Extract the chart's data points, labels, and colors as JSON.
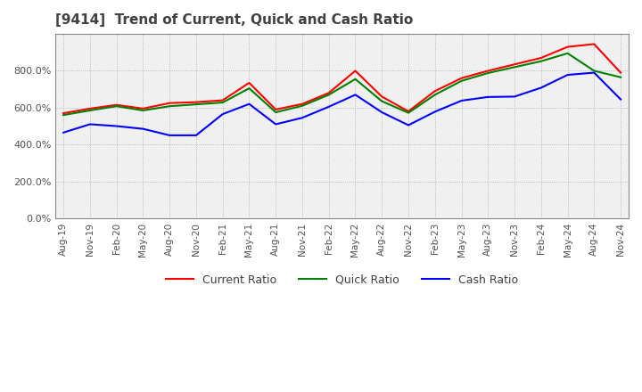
{
  "title": "[9414]  Trend of Current, Quick and Cash Ratio",
  "x_labels": [
    "Aug-19",
    "Nov-19",
    "Feb-20",
    "May-20",
    "Aug-20",
    "Nov-20",
    "Feb-21",
    "May-21",
    "Aug-21",
    "Nov-21",
    "Feb-22",
    "May-22",
    "Aug-22",
    "Nov-22",
    "Feb-23",
    "May-23",
    "Aug-23",
    "Nov-23",
    "Feb-24",
    "May-24",
    "Aug-24",
    "Nov-24"
  ],
  "current_ratio": [
    570,
    595,
    615,
    595,
    625,
    630,
    640,
    735,
    590,
    620,
    680,
    800,
    660,
    580,
    690,
    760,
    800,
    835,
    870,
    930,
    945,
    790
  ],
  "quick_ratio": [
    560,
    585,
    608,
    585,
    608,
    618,
    628,
    705,
    575,
    610,
    670,
    755,
    635,
    572,
    670,
    745,
    788,
    820,
    852,
    895,
    800,
    765
  ],
  "cash_ratio": [
    465,
    510,
    500,
    485,
    450,
    450,
    565,
    620,
    510,
    545,
    605,
    670,
    575,
    505,
    578,
    638,
    658,
    660,
    708,
    778,
    790,
    645
  ],
  "current_color": "#FF0000",
  "quick_color": "#008000",
  "cash_color": "#0000FF",
  "background_color": "#FFFFFF",
  "plot_bg_color": "#F0F0F0",
  "grid_color": "#AAAAAA",
  "ylim": [
    0,
    1000
  ],
  "yticks": [
    0,
    200,
    400,
    600,
    800
  ],
  "title_color": "#404040",
  "legend_labels": [
    "Current Ratio",
    "Quick Ratio",
    "Cash Ratio"
  ]
}
